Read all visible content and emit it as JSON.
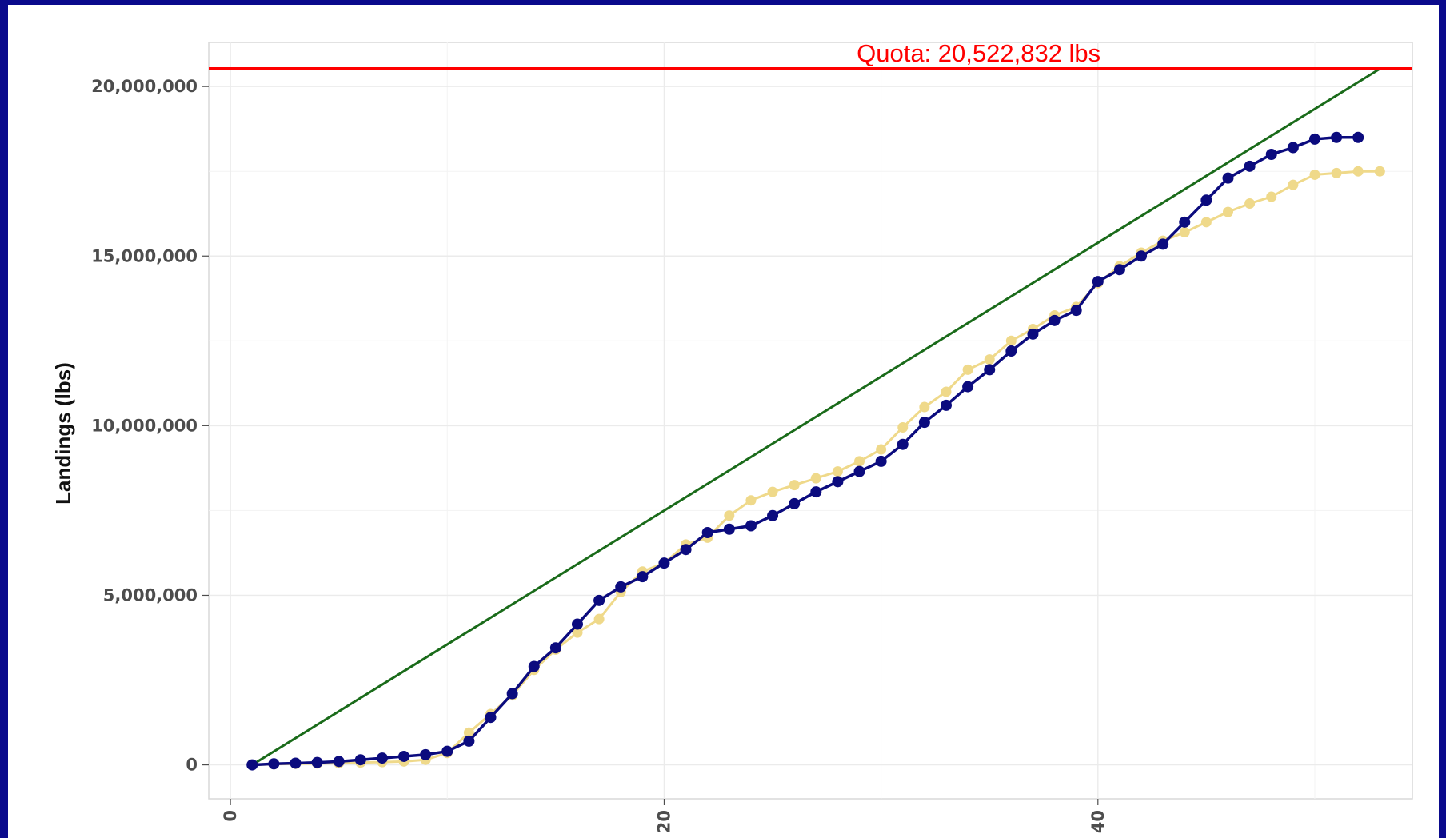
{
  "chart_data": {
    "type": "line",
    "ylabel": "Landings (lbs)",
    "xlabel": "",
    "xlim": [
      -1,
      54.5
    ],
    "ylim": [
      -1000000,
      21300000
    ],
    "x_ticks": [
      0,
      20,
      40
    ],
    "x_tick_labels": [
      "0",
      "20",
      "40"
    ],
    "y_ticks": [
      0,
      5000000,
      10000000,
      15000000,
      20000000
    ],
    "y_tick_labels": [
      "0",
      "5,000,000",
      "10,000,000",
      "15,000,000",
      "20,000,000"
    ],
    "grid": true,
    "quota": {
      "label": "Quota: 20,522,832 lbs",
      "value": 20522832,
      "color": "#ff0000"
    },
    "target_line": {
      "x": [
        1,
        53
      ],
      "y": [
        0,
        20522832
      ],
      "color": "#1a6b1a"
    },
    "series": [
      {
        "color": "#efd98a",
        "x": [
          1,
          2,
          3,
          4,
          5,
          6,
          7,
          8,
          9,
          10,
          11,
          12,
          13,
          14,
          15,
          16,
          17,
          18,
          19,
          20,
          21,
          22,
          23,
          24,
          25,
          26,
          27,
          28,
          29,
          30,
          31,
          32,
          33,
          34,
          35,
          36,
          37,
          38,
          39,
          40,
          41,
          42,
          43,
          44,
          45,
          46,
          47,
          48,
          49,
          50,
          51,
          52,
          53
        ],
        "y": [
          0,
          20000,
          30000,
          40000,
          50000,
          70000,
          80000,
          100000,
          150000,
          350000,
          950000,
          1500000,
          2050000,
          2800000,
          3400000,
          3900000,
          4300000,
          5100000,
          5700000,
          5950000,
          6500000,
          6700000,
          7350000,
          7800000,
          8050000,
          8250000,
          8450000,
          8650000,
          8950000,
          9300000,
          9950000,
          10550000,
          11000000,
          11650000,
          11950000,
          12500000,
          12850000,
          13250000,
          13500000,
          14200000,
          14700000,
          15100000,
          15450000,
          15700000,
          16000000,
          16300000,
          16550000,
          16750000,
          17100000,
          17400000,
          17450000,
          17500000,
          17500000
        ]
      },
      {
        "color": "#0b0b7e",
        "x": [
          1,
          2,
          3,
          4,
          5,
          6,
          7,
          8,
          9,
          10,
          11,
          12,
          13,
          14,
          15,
          16,
          17,
          18,
          19,
          20,
          21,
          22,
          23,
          24,
          25,
          26,
          27,
          28,
          29,
          30,
          31,
          32,
          33,
          34,
          35,
          36,
          37,
          38,
          39,
          40,
          41,
          42,
          43,
          44,
          45,
          46,
          47,
          48,
          49,
          50,
          51,
          52
        ],
        "y": [
          0,
          30000,
          50000,
          70000,
          100000,
          150000,
          200000,
          250000,
          300000,
          400000,
          700000,
          1400000,
          2100000,
          2900000,
          3450000,
          4150000,
          4850000,
          5250000,
          5550000,
          5950000,
          6350000,
          6850000,
          6950000,
          7050000,
          7350000,
          7700000,
          8050000,
          8350000,
          8650000,
          8950000,
          9450000,
          10100000,
          10600000,
          11150000,
          11650000,
          12200000,
          12700000,
          13100000,
          13400000,
          14250000,
          14600000,
          15000000,
          15350000,
          16000000,
          16650000,
          17300000,
          17650000,
          18000000,
          18200000,
          18450000,
          18500000,
          18500000
        ]
      }
    ]
  }
}
